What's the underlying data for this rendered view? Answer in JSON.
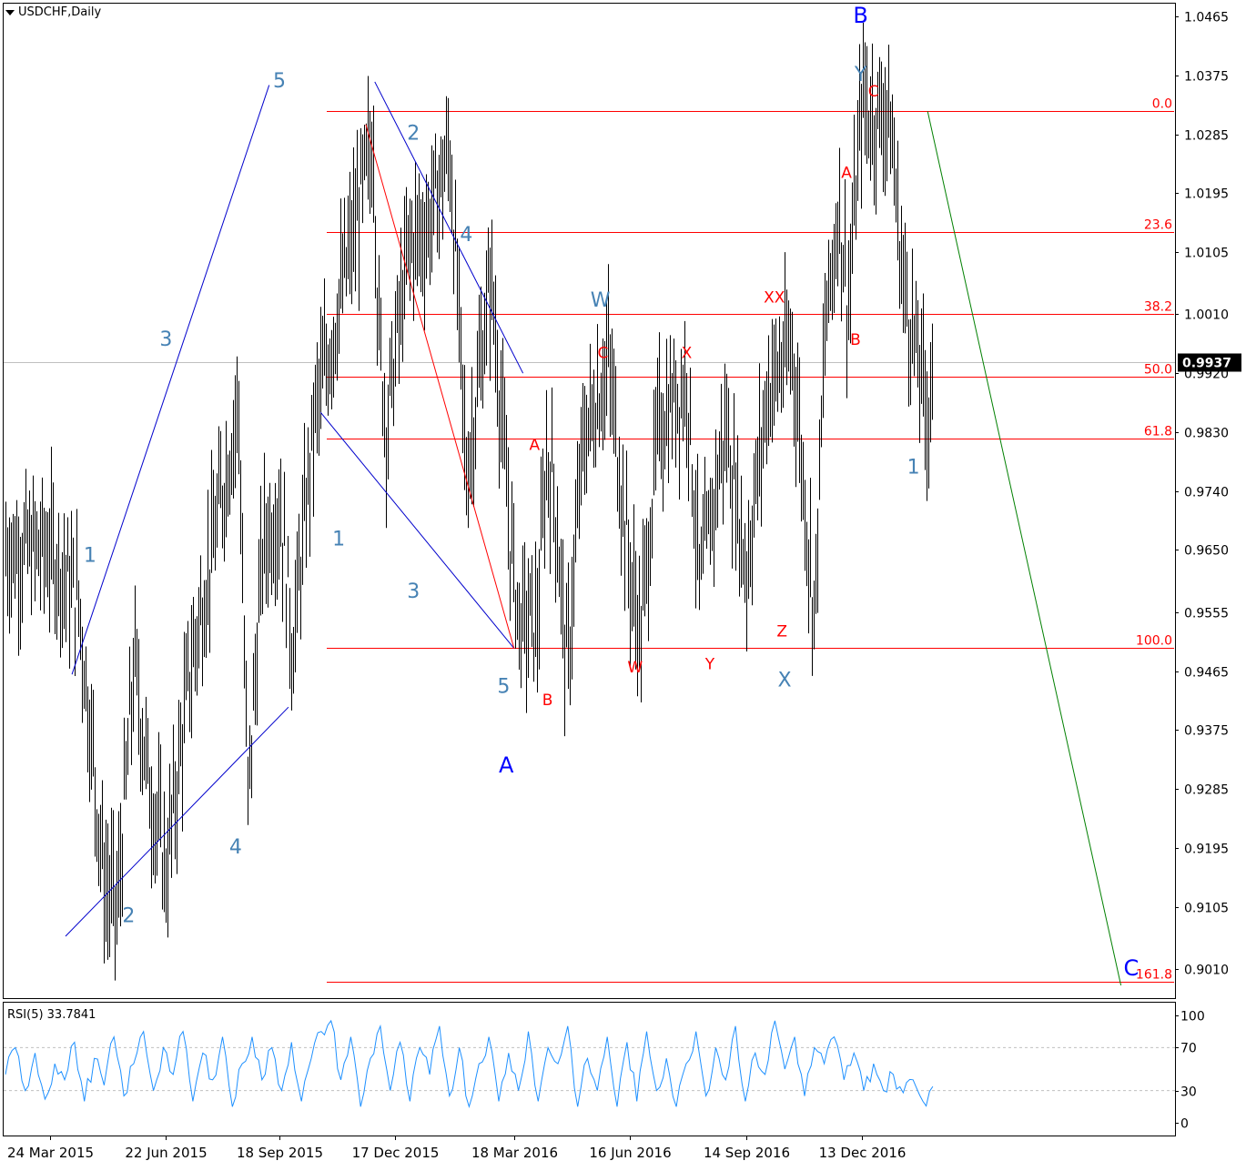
{
  "header": {
    "symbol_timeframe": "USDCHF,Daily"
  },
  "colors": {
    "price_bar": "#000000",
    "fib": "#ff0000",
    "channel": "#0000cc",
    "wave_blue": "#4682b4",
    "wave_dark": "#0000ff",
    "wave_red": "#ff0000",
    "rsi_line": "#1e90ff",
    "green_line": "#008000",
    "grid": "#c0c0c0"
  },
  "chart_data": [
    {
      "type": "bar",
      "title": "USDCHF,Daily",
      "ylim": [
        0.897,
        1.048
      ],
      "y_ticks": [
        "1.0465",
        "1.0375",
        "1.0285",
        "1.0195",
        "1.0105",
        "1.0010",
        "0.9920",
        "0.9830",
        "0.9740",
        "0.9650",
        "0.9555",
        "0.9465",
        "0.9375",
        "0.9285",
        "0.9195",
        "0.9105",
        "0.9010"
      ],
      "x_ticks": [
        "24 Mar 2015",
        "22 Jun 2015",
        "18 Sep 2015",
        "17 Dec 2015",
        "18 Mar 2016",
        "16 Jun 2016",
        "14 Sep 2016",
        "13 Dec 2016"
      ],
      "current_price": "0.9937",
      "price_path_approx": [
        [
          "24 Mar 2015",
          0.965
        ],
        [
          "15 Apr 2015",
          0.957
        ],
        [
          "5 May 2015",
          0.914
        ],
        [
          "15 May 2015",
          0.91
        ],
        [
          "28 May 2015",
          0.948
        ],
        [
          "8 Jun 2015",
          0.93
        ],
        [
          "22 Jun 2015",
          0.916
        ],
        [
          "10 Jul 2015",
          0.946
        ],
        [
          "1 Aug 2015",
          0.97
        ],
        [
          "17 Aug 2015",
          0.988
        ],
        [
          "24 Aug 2015",
          0.926
        ],
        [
          "5 Sep 2015",
          0.966
        ],
        [
          "18 Sep 2015",
          0.972
        ],
        [
          "28 Sep 2015",
          0.95
        ],
        [
          "15 Oct 2015",
          0.985
        ],
        [
          "30 Nov 2015",
          1.028
        ],
        [
          "3 Dec 2015",
          1.0
        ],
        [
          "10 Dec 2015",
          0.984
        ],
        [
          "17 Dec 2015",
          0.996
        ],
        [
          "28 Dec 2015",
          1.012
        ],
        [
          "10 Jan 2016",
          1.014
        ],
        [
          "28 Jan 2016",
          1.026
        ],
        [
          "10 Feb 2016",
          0.976
        ],
        [
          "29 Feb 2016",
          1.007
        ],
        [
          "15 Mar 2016",
          0.966
        ],
        [
          "22 Mar 2016",
          0.954
        ],
        [
          "5 Apr 2016",
          0.954
        ],
        [
          "12 Apr 2016",
          0.979
        ],
        [
          "18 Apr 2016",
          0.974
        ],
        [
          "28 Apr 2016",
          0.946
        ],
        [
          "10 May 2016",
          0.981
        ],
        [
          "30 May 2016",
          0.994
        ],
        [
          "16 Jun 2016",
          0.961
        ],
        [
          "24 Jun 2016",
          0.952
        ],
        [
          "8 Jul 2016",
          0.984
        ],
        [
          "30 Jul 2016",
          0.991
        ],
        [
          "9 Aug 2016",
          0.959
        ],
        [
          "29 Aug 2016",
          0.984
        ],
        [
          "14 Sep 2016",
          0.962
        ],
        [
          "1 Oct 2016",
          0.99
        ],
        [
          "20 Oct 2016",
          0.996
        ],
        [
          "28 Oct 2016",
          0.976
        ],
        [
          "6 Nov 2016",
          0.955
        ],
        [
          "14 Nov 2016",
          0.998
        ],
        [
          "25 Nov 2016",
          1.018
        ],
        [
          "2 Dec 2016",
          1.002
        ],
        [
          "13 Dec 2016",
          1.034
        ],
        [
          "20 Dec 2016",
          1.031
        ],
        [
          "3 Jan 2017",
          1.032
        ],
        [
          "13 Jan 2017",
          1.007
        ],
        [
          "24 Jan 2017",
          0.995
        ],
        [
          "2 Feb 2017",
          0.986
        ],
        [
          "6 Feb 2017",
          0.993
        ]
      ],
      "fib_levels": [
        {
          "label": "0.0",
          "price": 1.032
        },
        {
          "label": "23.6",
          "price": 1.0135
        },
        {
          "label": "38.2",
          "price": 1.001
        },
        {
          "label": "50.0",
          "price": 0.9915
        },
        {
          "label": "61.8",
          "price": 0.982
        },
        {
          "label": "100.0",
          "price": 0.95
        },
        {
          "label": "161.8",
          "price": 0.899
        }
      ],
      "wave_labels": [
        {
          "text": "5",
          "date": "18 Sep 2015",
          "price": 1.0365,
          "style": "blue"
        },
        {
          "text": "3",
          "date": "22 Jun 2015",
          "price": 0.997,
          "style": "blue"
        },
        {
          "text": "1",
          "date": "24 Apr 2015",
          "price": 0.964,
          "style": "blue"
        },
        {
          "text": "2",
          "date": "24 May 2015",
          "price": 0.909,
          "style": "blue"
        },
        {
          "text": "4",
          "date": "15 Aug 2015",
          "price": 0.9195,
          "style": "blue"
        },
        {
          "text": "2",
          "date": "31 Dec 2015",
          "price": 1.0285,
          "style": "blue"
        },
        {
          "text": "4",
          "date": "10 Feb 2016",
          "price": 1.013,
          "style": "blue"
        },
        {
          "text": "1",
          "date": "3 Nov 2015",
          "price": 0.9665,
          "style": "blue"
        },
        {
          "text": "3",
          "date": "31 Dec 2015",
          "price": 0.9585,
          "style": "blue"
        },
        {
          "text": "5",
          "date": "10 Mar 2016",
          "price": 0.944,
          "style": "blue"
        },
        {
          "text": "A",
          "date": "12 Mar 2016",
          "price": 0.932,
          "style": "dark"
        },
        {
          "text": "W",
          "date": "24 May 2016",
          "price": 1.003,
          "style": "blue"
        },
        {
          "text": "X",
          "date": "14 Oct 2016",
          "price": 0.945,
          "style": "blue"
        },
        {
          "text": "Y",
          "date": "12 Dec 2016",
          "price": 1.0375,
          "style": "blue"
        },
        {
          "text": "B",
          "date": "12 Dec 2016",
          "price": 1.0465,
          "style": "dark"
        },
        {
          "text": "1",
          "date": "22 Jan 2017",
          "price": 0.9775,
          "style": "blue"
        },
        {
          "text": "C",
          "date": "10 Jul 2017",
          "price": 0.901,
          "style": "dark"
        },
        {
          "text": "A",
          "date": "3 Apr 2016",
          "price": 0.981,
          "style": "red"
        },
        {
          "text": "B",
          "date": "13 Apr 2016",
          "price": 0.942,
          "style": "red"
        },
        {
          "text": "C",
          "date": "26 May 2016",
          "price": 0.995,
          "style": "red"
        },
        {
          "text": "W",
          "date": "20 Jun 2016",
          "price": 0.947,
          "style": "red"
        },
        {
          "text": "X",
          "date": "30 Jul 2016",
          "price": 0.995,
          "style": "red"
        },
        {
          "text": "Y",
          "date": "17 Aug 2016",
          "price": 0.9475,
          "style": "red"
        },
        {
          "text": "XX",
          "date": "6 Oct 2016",
          "price": 1.0035,
          "style": "red"
        },
        {
          "text": "Z",
          "date": "12 Oct 2016",
          "price": 0.9525,
          "style": "red"
        },
        {
          "text": "A",
          "date": "1 Dec 2016",
          "price": 1.0225,
          "style": "red"
        },
        {
          "text": "B",
          "date": "8 Dec 2016",
          "price": 0.997,
          "style": "red"
        },
        {
          "text": "C",
          "date": "22 Dec 2016",
          "price": 1.035,
          "style": "red"
        }
      ],
      "trend_lines": [
        {
          "from": [
            "10 Apr 2015",
            0.946
          ],
          "to": [
            "10 Sep 2015",
            1.036
          ],
          "color": "channel"
        },
        {
          "from": [
            "5 Apr 2015",
            0.906
          ],
          "to": [
            "25 Sep 2015",
            0.941
          ],
          "color": "channel"
        },
        {
          "from": [
            "1 Dec 2015",
            1.0365
          ],
          "to": [
            "25 Mar 2016",
            0.992
          ],
          "color": "channel"
        },
        {
          "from": [
            "20 Oct 2015",
            0.986
          ],
          "to": [
            "18 Mar 2016",
            0.95
          ],
          "color": "channel"
        },
        {
          "from": [
            "24 Nov 2015",
            1.03
          ],
          "to": [
            "18 Mar 2016",
            0.95
          ],
          "color": "fib"
        },
        {
          "from": [
            "2 Feb 2017",
            1.032
          ],
          "to": [
            "2 Jul 2017",
            0.8985
          ],
          "color": "green_line"
        }
      ]
    },
    {
      "type": "line",
      "title": "RSI(5) 33.7841",
      "ylim": [
        0,
        100
      ],
      "y_ticks": [
        "100",
        "70",
        "30",
        "0"
      ],
      "levels": [
        70,
        30
      ],
      "series": [
        {
          "name": "RSI(5)",
          "values": [
            45,
            70,
            30,
            65,
            22,
            55,
            40,
            75,
            20,
            60,
            35,
            80,
            25,
            55,
            85,
            30,
            70,
            45,
            85,
            20,
            65,
            40,
            80,
            15,
            55,
            80,
            40,
            70,
            30,
            75,
            20,
            60,
            85,
            95,
            40,
            80,
            15,
            60,
            90,
            30,
            75,
            20,
            70,
            45,
            90,
            25,
            70,
            15,
            55,
            80,
            20,
            65,
            30,
            85,
            20,
            70,
            55,
            90,
            15,
            60,
            30,
            80,
            15,
            75,
            20,
            85,
            30,
            60,
            15,
            55,
            85,
            25,
            70,
            40,
            90,
            20,
            65,
            45,
            95,
            50,
            80,
            25,
            70,
            55,
            80,
            40,
            65,
            30,
            55,
            30,
            45,
            28,
            40,
            20,
            33.78
          ]
        }
      ]
    }
  ]
}
